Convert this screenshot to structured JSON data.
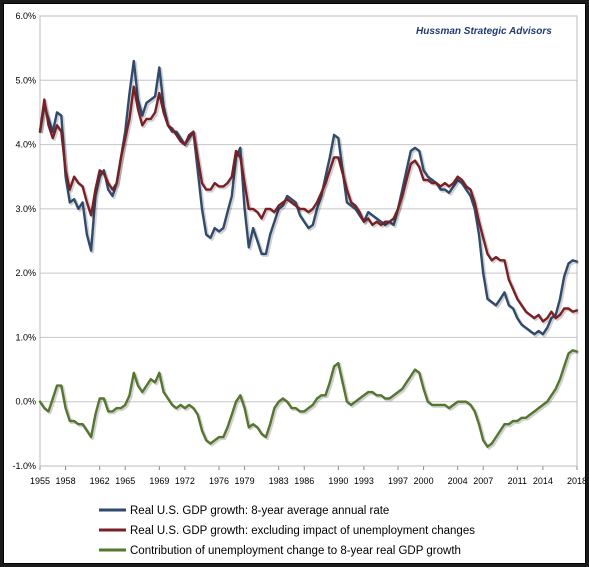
{
  "chart_data": {
    "type": "line",
    "title": "",
    "xlabel": "",
    "ylabel": "",
    "credit": "Hussman Strategic Advisors",
    "xlim": [
      1955,
      2018
    ],
    "ylim": [
      -1.0,
      6.0
    ],
    "grid": true,
    "legend_position": "bottom",
    "x_ticks": [
      1955,
      1958,
      1962,
      1965,
      1969,
      1972,
      1976,
      1979,
      1983,
      1986,
      1990,
      1993,
      1997,
      2000,
      2004,
      2007,
      2011,
      2014,
      2018
    ],
    "x_tick_labels": [
      "1955",
      "1958",
      "1962",
      "1965",
      "1969",
      "1972",
      "1976",
      "1979",
      "1983",
      "1986",
      "1990",
      "1993",
      "1997",
      "2000",
      "2004",
      "2007",
      "2011",
      "2014",
      "2018"
    ],
    "y_ticks": [
      -1,
      0,
      1,
      2,
      3,
      4,
      5,
      6
    ],
    "y_tick_labels": [
      "-1.0%",
      "0.0%",
      "1.0%",
      "2.0%",
      "3.0%",
      "4.0%",
      "5.0%",
      "6.0%"
    ],
    "series": [
      {
        "name": "Real U.S. GDP growth: 8-year average annual rate",
        "color": "#2f4a6d",
        "x": [
          1955.0,
          1955.5,
          1956.0,
          1956.5,
          1957.0,
          1957.5,
          1958.0,
          1958.5,
          1959.0,
          1959.5,
          1960.0,
          1960.5,
          1961.0,
          1961.5,
          1962.0,
          1962.5,
          1963.0,
          1963.5,
          1964.0,
          1964.5,
          1965.0,
          1965.5,
          1966.0,
          1966.5,
          1967.0,
          1967.5,
          1968.0,
          1968.5,
          1969.0,
          1969.5,
          1970.0,
          1970.5,
          1971.0,
          1971.5,
          1972.0,
          1972.5,
          1973.0,
          1973.5,
          1974.0,
          1974.5,
          1975.0,
          1975.5,
          1976.0,
          1976.5,
          1977.0,
          1977.5,
          1978.0,
          1978.5,
          1979.0,
          1979.5,
          1980.0,
          1980.5,
          1981.0,
          1981.5,
          1982.0,
          1982.5,
          1983.0,
          1983.5,
          1984.0,
          1984.5,
          1985.0,
          1985.5,
          1986.0,
          1986.5,
          1987.0,
          1987.5,
          1988.0,
          1988.5,
          1989.0,
          1989.5,
          1990.0,
          1990.5,
          1991.0,
          1991.5,
          1992.0,
          1992.5,
          1993.0,
          1993.5,
          1994.0,
          1994.5,
          1995.0,
          1995.5,
          1996.0,
          1996.5,
          1997.0,
          1997.5,
          1998.0,
          1998.5,
          1999.0,
          1999.5,
          2000.0,
          2000.5,
          2001.0,
          2001.5,
          2002.0,
          2002.5,
          2003.0,
          2003.5,
          2004.0,
          2004.5,
          2005.0,
          2005.5,
          2006.0,
          2006.5,
          2007.0,
          2007.5,
          2008.0,
          2008.5,
          2009.0,
          2009.5,
          2010.0,
          2010.5,
          2011.0,
          2011.5,
          2012.0,
          2012.5,
          2013.0,
          2013.5,
          2014.0,
          2014.5,
          2015.0,
          2015.5,
          2016.0,
          2016.5,
          2017.0,
          2017.5,
          2018.0
        ],
        "y": [
          4.2,
          4.6,
          4.4,
          4.2,
          4.5,
          4.45,
          3.5,
          3.1,
          3.15,
          3.0,
          3.1,
          2.6,
          2.35,
          3.2,
          3.5,
          3.6,
          3.3,
          3.2,
          3.4,
          3.8,
          4.2,
          4.8,
          5.3,
          4.7,
          4.45,
          4.65,
          4.7,
          4.75,
          5.2,
          4.6,
          4.3,
          4.2,
          4.2,
          4.1,
          4.0,
          4.1,
          4.2,
          3.6,
          3.0,
          2.6,
          2.55,
          2.7,
          2.65,
          2.7,
          2.95,
          3.2,
          3.8,
          3.95,
          3.0,
          2.4,
          2.7,
          2.5,
          2.3,
          2.3,
          2.6,
          2.8,
          3.0,
          3.05,
          3.2,
          3.15,
          3.1,
          2.9,
          2.8,
          2.7,
          2.75,
          3.0,
          3.2,
          3.5,
          3.8,
          4.15,
          4.1,
          3.6,
          3.1,
          3.05,
          3.0,
          2.9,
          2.8,
          2.95,
          2.9,
          2.85,
          2.8,
          2.75,
          2.8,
          2.75,
          3.0,
          3.3,
          3.6,
          3.9,
          3.95,
          3.9,
          3.6,
          3.5,
          3.45,
          3.4,
          3.3,
          3.3,
          3.25,
          3.35,
          3.45,
          3.4,
          3.3,
          3.2,
          3.0,
          2.6,
          2.0,
          1.6,
          1.55,
          1.5,
          1.6,
          1.7,
          1.5,
          1.45,
          1.3,
          1.2,
          1.15,
          1.1,
          1.05,
          1.1,
          1.05,
          1.15,
          1.3,
          1.35,
          1.6,
          1.95,
          2.15,
          2.2,
          2.18
        ]
      },
      {
        "name": "Real U.S. GDP growth: excluding impact of unemployment changes",
        "color": "#7a1f24",
        "x": [
          1955.0,
          1955.5,
          1956.0,
          1956.5,
          1957.0,
          1957.5,
          1958.0,
          1958.5,
          1959.0,
          1959.5,
          1960.0,
          1960.5,
          1961.0,
          1961.5,
          1962.0,
          1962.5,
          1963.0,
          1963.5,
          1964.0,
          1964.5,
          1965.0,
          1965.5,
          1966.0,
          1966.5,
          1967.0,
          1967.5,
          1968.0,
          1968.5,
          1969.0,
          1969.5,
          1970.0,
          1970.5,
          1971.0,
          1971.5,
          1972.0,
          1972.5,
          1973.0,
          1973.5,
          1974.0,
          1974.5,
          1975.0,
          1975.5,
          1976.0,
          1976.5,
          1977.0,
          1977.5,
          1978.0,
          1978.5,
          1979.0,
          1979.5,
          1980.0,
          1980.5,
          1981.0,
          1981.5,
          1982.0,
          1982.5,
          1983.0,
          1983.5,
          1984.0,
          1984.5,
          1985.0,
          1985.5,
          1986.0,
          1986.5,
          1987.0,
          1987.5,
          1988.0,
          1988.5,
          1989.0,
          1989.5,
          1990.0,
          1990.5,
          1991.0,
          1991.5,
          1992.0,
          1992.5,
          1993.0,
          1993.5,
          1994.0,
          1994.5,
          1995.0,
          1995.5,
          1996.0,
          1996.5,
          1997.0,
          1997.5,
          1998.0,
          1998.5,
          1999.0,
          1999.5,
          2000.0,
          2000.5,
          2001.0,
          2001.5,
          2002.0,
          2002.5,
          2003.0,
          2003.5,
          2004.0,
          2004.5,
          2005.0,
          2005.5,
          2006.0,
          2006.5,
          2007.0,
          2007.5,
          2008.0,
          2008.5,
          2009.0,
          2009.5,
          2010.0,
          2010.5,
          2011.0,
          2011.5,
          2012.0,
          2012.5,
          2013.0,
          2013.5,
          2014.0,
          2014.5,
          2015.0,
          2015.5,
          2016.0,
          2016.5,
          2017.0,
          2017.5,
          2018.0
        ],
        "y": [
          4.2,
          4.7,
          4.3,
          4.1,
          4.3,
          4.2,
          3.6,
          3.3,
          3.5,
          3.4,
          3.35,
          3.1,
          2.9,
          3.3,
          3.6,
          3.55,
          3.4,
          3.3,
          3.4,
          3.8,
          4.1,
          4.4,
          4.9,
          4.55,
          4.3,
          4.4,
          4.4,
          4.5,
          4.8,
          4.5,
          4.3,
          4.25,
          4.15,
          4.05,
          4.0,
          4.15,
          4.2,
          3.8,
          3.4,
          3.3,
          3.3,
          3.4,
          3.35,
          3.35,
          3.4,
          3.5,
          3.9,
          3.8,
          3.4,
          3.0,
          3.0,
          2.95,
          2.85,
          3.0,
          3.0,
          2.95,
          3.05,
          3.1,
          3.15,
          3.1,
          3.05,
          3.0,
          3.0,
          2.95,
          3.0,
          3.1,
          3.25,
          3.4,
          3.6,
          3.8,
          3.8,
          3.55,
          3.3,
          3.1,
          3.05,
          2.95,
          2.8,
          2.85,
          2.75,
          2.8,
          2.75,
          2.8,
          2.8,
          2.85,
          3.0,
          3.2,
          3.45,
          3.7,
          3.75,
          3.65,
          3.45,
          3.45,
          3.4,
          3.4,
          3.35,
          3.4,
          3.35,
          3.4,
          3.5,
          3.45,
          3.35,
          3.3,
          3.1,
          2.8,
          2.55,
          2.3,
          2.2,
          2.25,
          2.2,
          2.2,
          1.9,
          1.75,
          1.6,
          1.5,
          1.4,
          1.35,
          1.3,
          1.35,
          1.25,
          1.3,
          1.4,
          1.3,
          1.35,
          1.45,
          1.45,
          1.4,
          1.42
        ]
      },
      {
        "name": "Contribution of unemployment change to 8-year real GDP growth",
        "color": "#56752e",
        "x": [
          1955.0,
          1955.5,
          1956.0,
          1956.5,
          1957.0,
          1957.5,
          1958.0,
          1958.5,
          1959.0,
          1959.5,
          1960.0,
          1960.5,
          1961.0,
          1961.5,
          1962.0,
          1962.5,
          1963.0,
          1963.5,
          1964.0,
          1964.5,
          1965.0,
          1965.5,
          1966.0,
          1966.5,
          1967.0,
          1967.5,
          1968.0,
          1968.5,
          1969.0,
          1969.5,
          1970.0,
          1970.5,
          1971.0,
          1971.5,
          1972.0,
          1972.5,
          1973.0,
          1973.5,
          1974.0,
          1974.5,
          1975.0,
          1975.5,
          1976.0,
          1976.5,
          1977.0,
          1977.5,
          1978.0,
          1978.5,
          1979.0,
          1979.5,
          1980.0,
          1980.5,
          1981.0,
          1981.5,
          1982.0,
          1982.5,
          1983.0,
          1983.5,
          1984.0,
          1984.5,
          1985.0,
          1985.5,
          1986.0,
          1986.5,
          1987.0,
          1987.5,
          1988.0,
          1988.5,
          1989.0,
          1989.5,
          1990.0,
          1990.5,
          1991.0,
          1991.5,
          1992.0,
          1992.5,
          1993.0,
          1993.5,
          1994.0,
          1994.5,
          1995.0,
          1995.5,
          1996.0,
          1996.5,
          1997.0,
          1997.5,
          1998.0,
          1998.5,
          1999.0,
          1999.5,
          2000.0,
          2000.5,
          2001.0,
          2001.5,
          2002.0,
          2002.5,
          2003.0,
          2003.5,
          2004.0,
          2004.5,
          2005.0,
          2005.5,
          2006.0,
          2006.5,
          2007.0,
          2007.5,
          2008.0,
          2008.5,
          2009.0,
          2009.5,
          2010.0,
          2010.5,
          2011.0,
          2011.5,
          2012.0,
          2012.5,
          2013.0,
          2013.5,
          2014.0,
          2014.5,
          2015.0,
          2015.5,
          2016.0,
          2016.5,
          2017.0,
          2017.5,
          2018.0
        ],
        "y": [
          0.0,
          -0.1,
          -0.15,
          0.05,
          0.25,
          0.25,
          -0.1,
          -0.3,
          -0.3,
          -0.35,
          -0.35,
          -0.45,
          -0.55,
          -0.2,
          0.05,
          0.05,
          -0.15,
          -0.15,
          -0.1,
          -0.1,
          -0.05,
          0.1,
          0.45,
          0.25,
          0.15,
          0.25,
          0.35,
          0.3,
          0.45,
          0.15,
          0.05,
          -0.05,
          -0.1,
          -0.05,
          -0.1,
          -0.05,
          -0.1,
          -0.2,
          -0.45,
          -0.6,
          -0.65,
          -0.6,
          -0.55,
          -0.55,
          -0.4,
          -0.2,
          0.0,
          0.1,
          -0.1,
          -0.4,
          -0.35,
          -0.4,
          -0.5,
          -0.55,
          -0.35,
          -0.1,
          0.0,
          0.05,
          0.0,
          -0.1,
          -0.1,
          -0.15,
          -0.15,
          -0.1,
          -0.05,
          0.05,
          0.1,
          0.1,
          0.3,
          0.55,
          0.6,
          0.3,
          0.0,
          -0.05,
          0.0,
          0.05,
          0.1,
          0.15,
          0.15,
          0.1,
          0.1,
          0.05,
          0.05,
          0.1,
          0.15,
          0.2,
          0.3,
          0.4,
          0.5,
          0.45,
          0.2,
          0.0,
          -0.05,
          -0.05,
          -0.05,
          -0.05,
          -0.1,
          -0.05,
          0.0,
          0.0,
          0.0,
          -0.05,
          -0.15,
          -0.35,
          -0.6,
          -0.7,
          -0.65,
          -0.55,
          -0.45,
          -0.35,
          -0.35,
          -0.3,
          -0.3,
          -0.25,
          -0.25,
          -0.2,
          -0.15,
          -0.1,
          -0.05,
          0.0,
          0.1,
          0.2,
          0.35,
          0.55,
          0.75,
          0.8,
          0.78
        ]
      }
    ]
  }
}
